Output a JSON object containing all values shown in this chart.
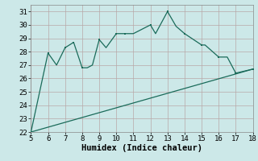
{
  "line1_x": [
    5,
    6,
    6.5,
    7,
    7.5,
    8,
    8.3,
    8.6,
    9,
    9.4,
    10,
    10.5,
    11,
    12,
    12.3,
    13,
    13.5,
    14,
    15,
    15.2,
    16,
    16.5,
    17,
    17.5,
    18
  ],
  "line1_y": [
    22.0,
    27.9,
    27.0,
    28.3,
    28.7,
    26.8,
    26.8,
    27.0,
    28.9,
    28.3,
    29.35,
    29.35,
    29.35,
    30.0,
    29.35,
    31.0,
    29.9,
    29.35,
    28.5,
    28.5,
    27.6,
    27.6,
    26.4,
    26.55,
    26.7
  ],
  "line1_markers_x": [
    6,
    7,
    7.5,
    8,
    9,
    10,
    10.5,
    12,
    13,
    14,
    15,
    16,
    17,
    18
  ],
  "line1_markers_y": [
    27.9,
    28.3,
    28.7,
    26.8,
    28.9,
    29.35,
    29.35,
    30.0,
    31.0,
    29.35,
    28.5,
    27.6,
    26.4,
    26.7
  ],
  "line2_x": [
    5,
    18
  ],
  "line2_y": [
    22.0,
    26.7
  ],
  "color": "#1a6b5a",
  "bg_color": "#cce8e8",
  "grid_color": "#b8a8a8",
  "xlabel": "Humidex (Indice chaleur)",
  "xlim": [
    5,
    18
  ],
  "ylim": [
    22,
    31.5
  ],
  "xticks": [
    5,
    6,
    7,
    8,
    9,
    10,
    11,
    12,
    13,
    14,
    15,
    16,
    17,
    18
  ],
  "yticks": [
    22,
    23,
    24,
    25,
    26,
    27,
    28,
    29,
    30,
    31
  ],
  "tick_fontsize": 6.5,
  "xlabel_fontsize": 7.5
}
